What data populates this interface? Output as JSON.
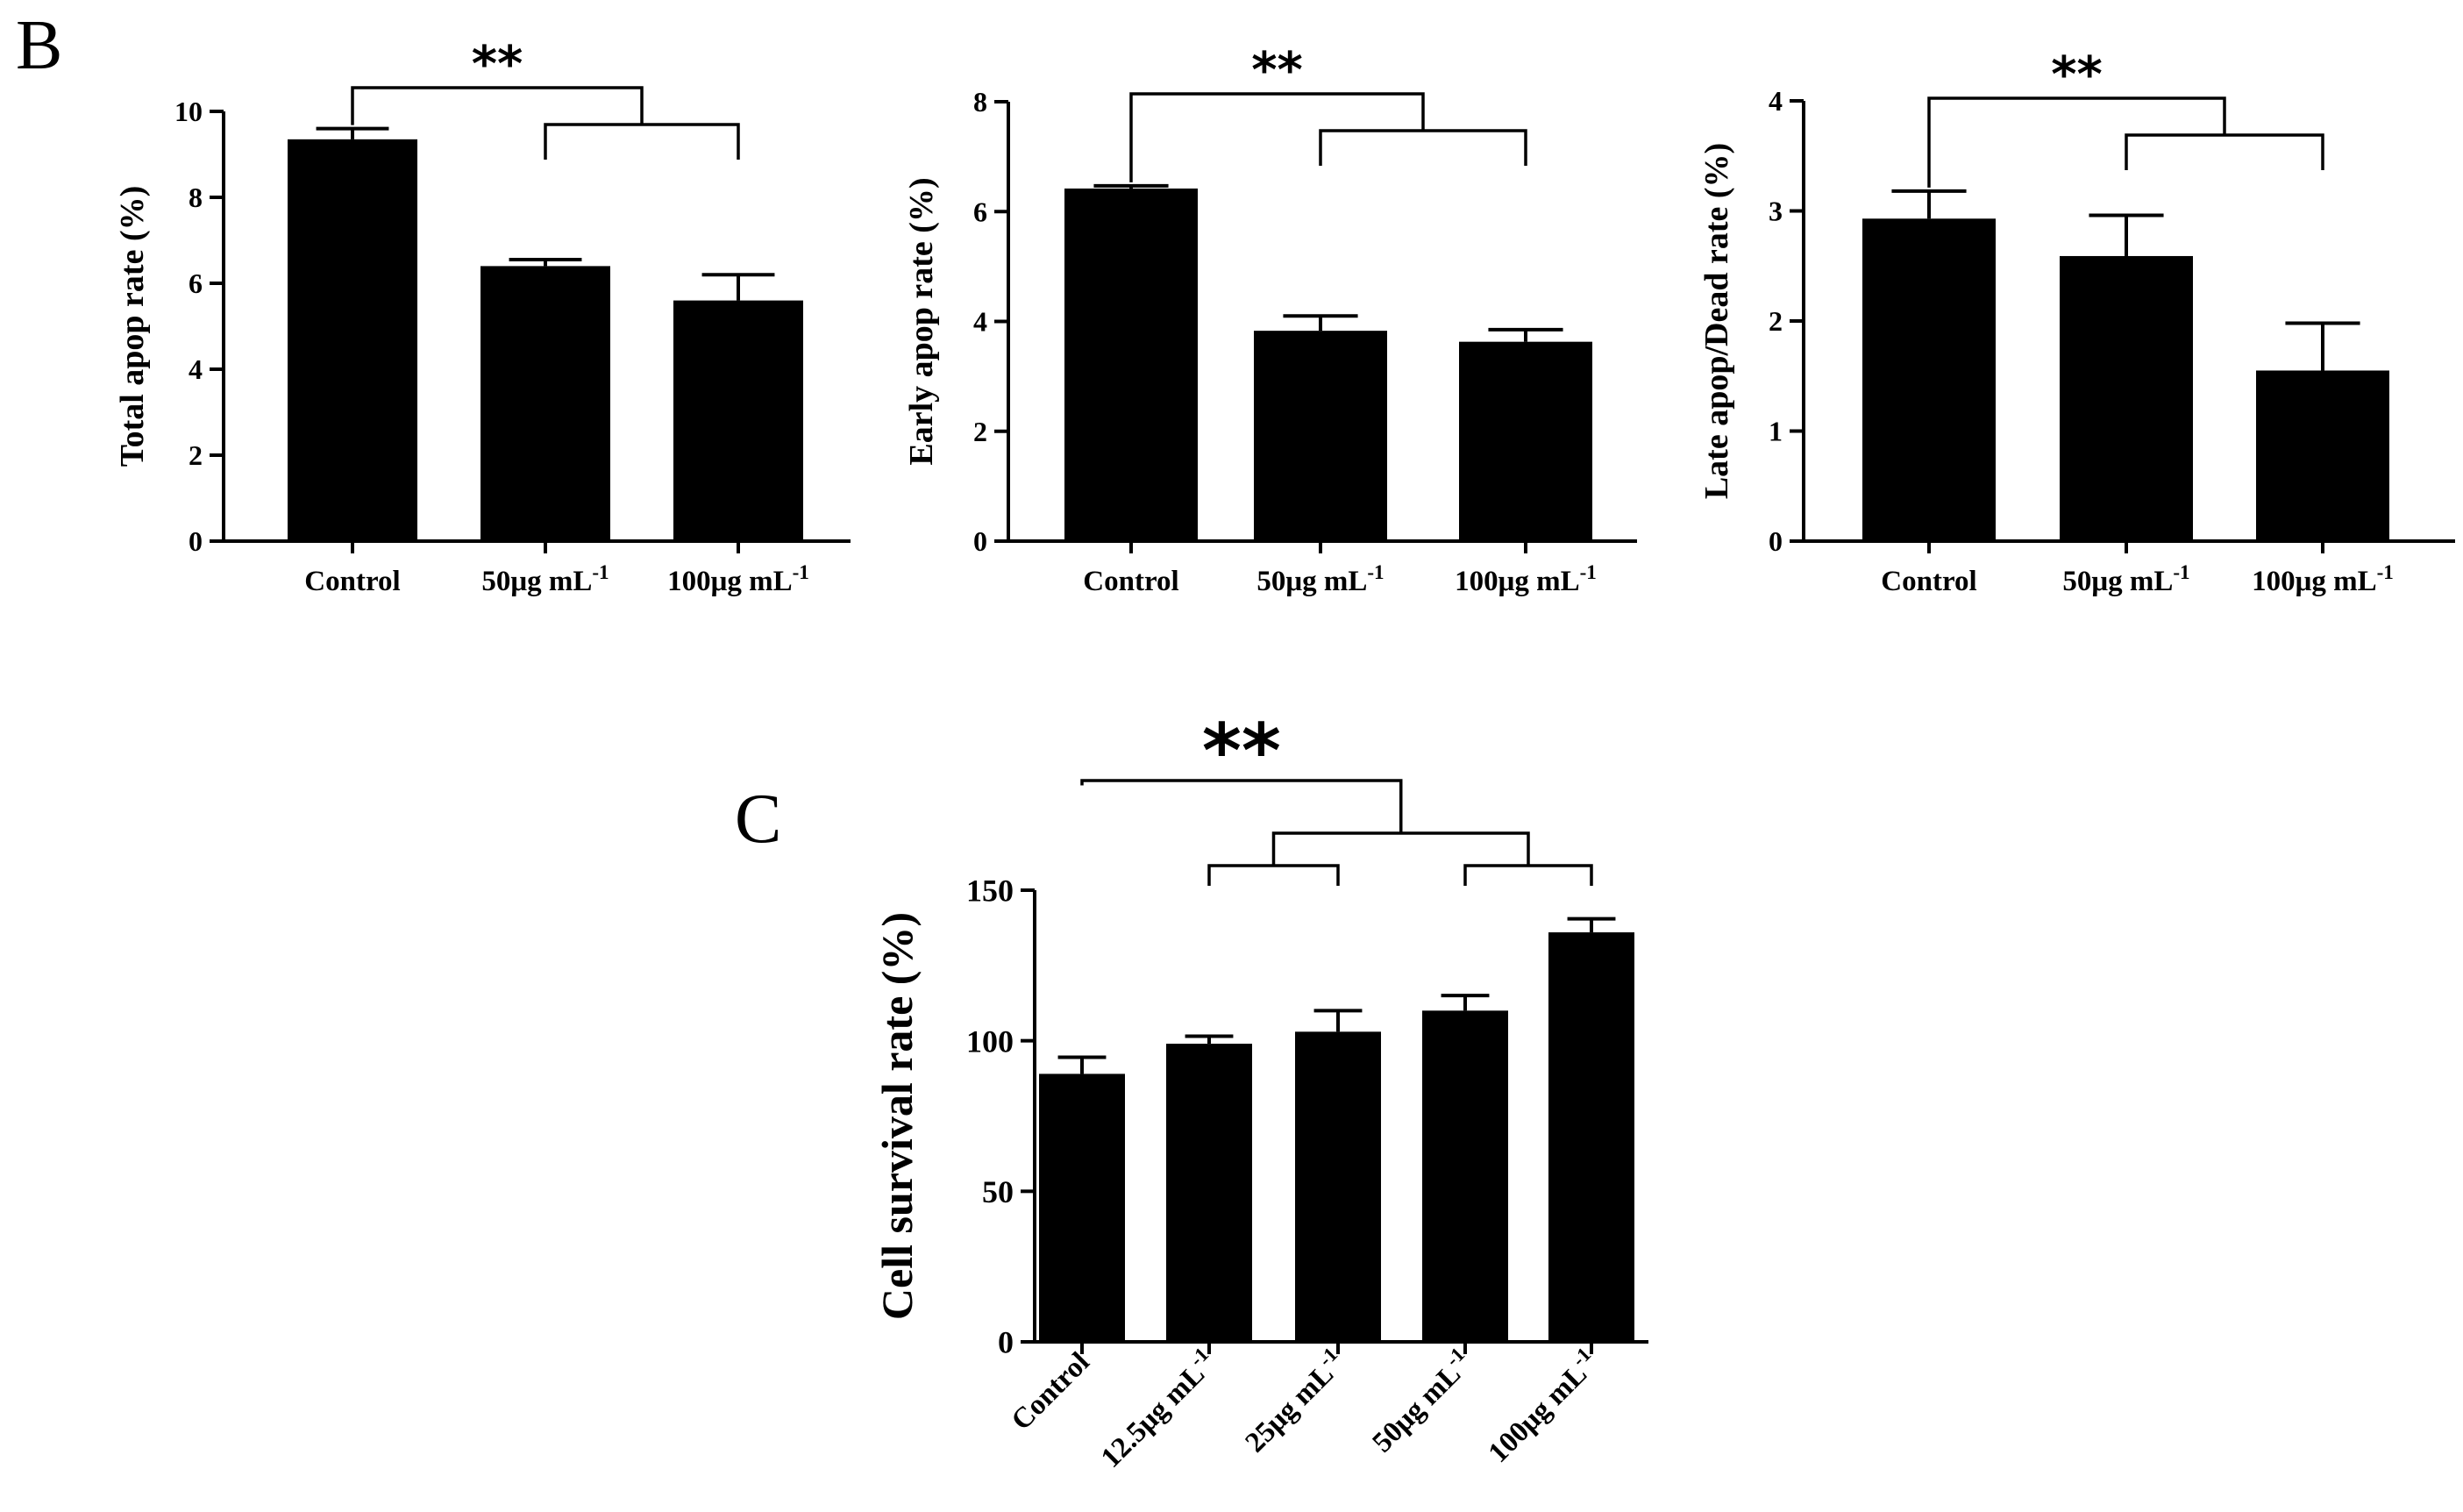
{
  "figure": {
    "panel_b_label": "B",
    "panel_c_label": "C",
    "significance_marker": "**",
    "bar_color": "#000000"
  },
  "chart_data": [
    {
      "id": "total-apop",
      "panel": "B",
      "type": "bar",
      "title": "",
      "xlabel": "",
      "ylabel": "Total apop rate (%)",
      "ylim": [
        0,
        10
      ],
      "yticks": [
        0,
        2,
        4,
        6,
        8,
        10
      ],
      "categories": [
        "Control",
        "50μg mL",
        "100μg mL"
      ],
      "category_superscripts": [
        "",
        "-1",
        "-1"
      ],
      "values": [
        9.35,
        6.4,
        5.6
      ],
      "errors": [
        0.25,
        0.15,
        0.6
      ],
      "significance": "**"
    },
    {
      "id": "early-apop",
      "panel": "B",
      "type": "bar",
      "title": "",
      "xlabel": "",
      "ylabel": "Early apop rate (%)",
      "ylim": [
        0,
        8
      ],
      "yticks": [
        0,
        2,
        4,
        6,
        8
      ],
      "categories": [
        "Control",
        "50μg mL",
        "100μg mL"
      ],
      "category_superscripts": [
        "",
        "-1",
        "-1"
      ],
      "values": [
        6.42,
        3.83,
        3.63
      ],
      "errors": [
        0.05,
        0.27,
        0.22
      ],
      "significance": "**"
    },
    {
      "id": "late-apop",
      "panel": "B",
      "type": "bar",
      "title": "",
      "xlabel": "",
      "ylabel": "Late apop/Dead rate (%)",
      "ylim": [
        0,
        4
      ],
      "yticks": [
        0,
        1,
        2,
        3,
        4
      ],
      "categories": [
        "Control",
        "50μg mL",
        "100μg mL"
      ],
      "category_superscripts": [
        "",
        "-1",
        "-1"
      ],
      "values": [
        2.93,
        2.59,
        1.55
      ],
      "errors": [
        0.25,
        0.37,
        0.43
      ],
      "significance": "**"
    },
    {
      "id": "cell-survival",
      "panel": "C",
      "type": "bar",
      "title": "",
      "xlabel": "",
      "ylabel": "Cell survival rate (%)",
      "ylim": [
        0,
        150
      ],
      "yticks": [
        0,
        50,
        100,
        150
      ],
      "categories": [
        "Control",
        "12.5μg mL",
        "25μg mL",
        "50μg mL",
        "100μg mL"
      ],
      "category_superscripts": [
        "",
        "-1",
        "-1",
        "-1",
        "-1"
      ],
      "values": [
        89,
        99,
        103,
        110,
        136
      ],
      "errors": [
        5.5,
        2.5,
        7,
        5,
        4.5
      ],
      "significance": "**"
    }
  ]
}
